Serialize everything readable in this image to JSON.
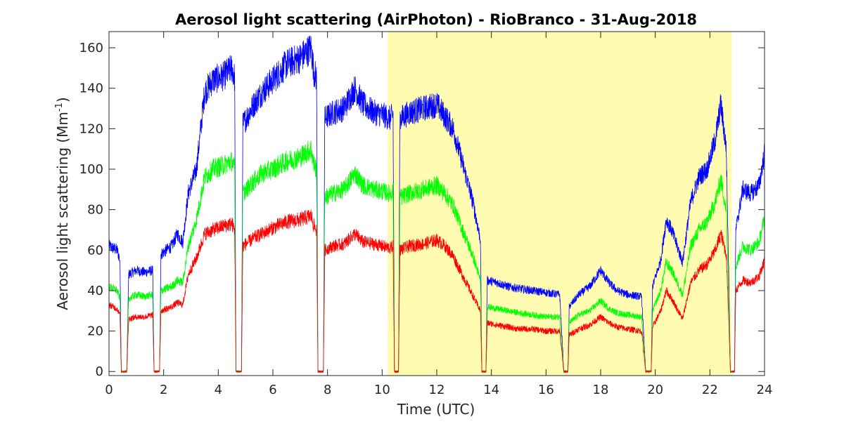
{
  "chart_data": {
    "type": "line",
    "title": "Aerosol light scattering (AirPhoton) - RioBranco - 31-Aug-2018",
    "xlabel": "Time (UTC)",
    "ylabel_main": "Aerosol light scattering (Mm",
    "ylabel_sup": "-1",
    "ylabel_close": ")",
    "xlim": [
      0,
      24
    ],
    "ylim": [
      -2,
      168
    ],
    "xticks": [
      0,
      2,
      4,
      6,
      8,
      10,
      12,
      14,
      16,
      18,
      20,
      22,
      24
    ],
    "yticks": [
      0,
      20,
      40,
      60,
      80,
      100,
      120,
      140,
      160
    ],
    "grid": false,
    "highlight": {
      "x_start": 10.2,
      "x_end": 22.8,
      "color": "#fffbb0"
    },
    "series": [
      {
        "color": "#0000ff",
        "points": [
          [
            0.0,
            62
          ],
          [
            0.3,
            60
          ],
          [
            0.4,
            55
          ],
          [
            0.45,
            0
          ],
          [
            0.65,
            0
          ],
          [
            0.72,
            48
          ],
          [
            1.0,
            50
          ],
          [
            1.3,
            49
          ],
          [
            1.6,
            50
          ],
          [
            1.65,
            0
          ],
          [
            1.85,
            0
          ],
          [
            1.9,
            58
          ],
          [
            2.3,
            62
          ],
          [
            2.5,
            68
          ],
          [
            2.7,
            64
          ],
          [
            2.9,
            88
          ],
          [
            3.2,
            100
          ],
          [
            3.5,
            138
          ],
          [
            3.8,
            144
          ],
          [
            4.2,
            146
          ],
          [
            4.5,
            150
          ],
          [
            4.6,
            145
          ],
          [
            4.65,
            0
          ],
          [
            4.85,
            0
          ],
          [
            4.9,
            122
          ],
          [
            5.3,
            132
          ],
          [
            5.6,
            138
          ],
          [
            6.0,
            144
          ],
          [
            6.5,
            152
          ],
          [
            7.0,
            155
          ],
          [
            7.4,
            160
          ],
          [
            7.5,
            148
          ],
          [
            7.6,
            145
          ],
          [
            7.65,
            0
          ],
          [
            7.85,
            0
          ],
          [
            7.9,
            125
          ],
          [
            8.2,
            128
          ],
          [
            8.6,
            130
          ],
          [
            9.0,
            140
          ],
          [
            9.3,
            132
          ],
          [
            9.7,
            128
          ],
          [
            10.0,
            127
          ],
          [
            10.3,
            125
          ],
          [
            10.4,
            127
          ],
          [
            10.45,
            0
          ],
          [
            10.6,
            0
          ],
          [
            10.65,
            125
          ],
          [
            11.0,
            128
          ],
          [
            11.5,
            130
          ],
          [
            12.0,
            132
          ],
          [
            12.3,
            126
          ],
          [
            12.6,
            120
          ],
          [
            13.0,
            100
          ],
          [
            13.3,
            85
          ],
          [
            13.6,
            65
          ],
          [
            13.65,
            0
          ],
          [
            13.8,
            0
          ],
          [
            13.85,
            45
          ],
          [
            14.2,
            44
          ],
          [
            14.6,
            42
          ],
          [
            15.0,
            41
          ],
          [
            15.5,
            40
          ],
          [
            16.0,
            39
          ],
          [
            16.5,
            38
          ],
          [
            16.65,
            0
          ],
          [
            16.8,
            0
          ],
          [
            16.85,
            32
          ],
          [
            17.2,
            38
          ],
          [
            17.6,
            42
          ],
          [
            18.0,
            50
          ],
          [
            18.3,
            44
          ],
          [
            18.6,
            40
          ],
          [
            19.0,
            38
          ],
          [
            19.5,
            37
          ],
          [
            19.65,
            0
          ],
          [
            19.85,
            0
          ],
          [
            19.9,
            42
          ],
          [
            20.2,
            55
          ],
          [
            20.4,
            75
          ],
          [
            20.6,
            70
          ],
          [
            20.8,
            62
          ],
          [
            21.0,
            54
          ],
          [
            21.3,
            84
          ],
          [
            21.6,
            96
          ],
          [
            21.9,
            100
          ],
          [
            22.2,
            115
          ],
          [
            22.4,
            132
          ],
          [
            22.6,
            110
          ],
          [
            22.7,
            40
          ],
          [
            22.75,
            0
          ],
          [
            22.9,
            0
          ],
          [
            22.95,
            70
          ],
          [
            23.2,
            90
          ],
          [
            23.5,
            88
          ],
          [
            23.8,
            92
          ],
          [
            24.0,
            108
          ]
        ]
      },
      {
        "color": "#00ff00",
        "points": [
          [
            0.0,
            42
          ],
          [
            0.3,
            40
          ],
          [
            0.4,
            36
          ],
          [
            0.45,
            0
          ],
          [
            0.65,
            0
          ],
          [
            0.72,
            36
          ],
          [
            1.0,
            38
          ],
          [
            1.3,
            37
          ],
          [
            1.6,
            38
          ],
          [
            1.65,
            0
          ],
          [
            1.85,
            0
          ],
          [
            1.9,
            40
          ],
          [
            2.3,
            42
          ],
          [
            2.5,
            45
          ],
          [
            2.7,
            44
          ],
          [
            2.9,
            62
          ],
          [
            3.2,
            75
          ],
          [
            3.5,
            96
          ],
          [
            3.8,
            100
          ],
          [
            4.2,
            102
          ],
          [
            4.5,
            104
          ],
          [
            4.6,
            100
          ],
          [
            4.65,
            0
          ],
          [
            4.85,
            0
          ],
          [
            4.9,
            88
          ],
          [
            5.3,
            94
          ],
          [
            5.6,
            98
          ],
          [
            6.0,
            100
          ],
          [
            6.5,
            104
          ],
          [
            7.0,
            106
          ],
          [
            7.4,
            110
          ],
          [
            7.5,
            102
          ],
          [
            7.6,
            100
          ],
          [
            7.65,
            0
          ],
          [
            7.85,
            0
          ],
          [
            7.9,
            86
          ],
          [
            8.2,
            88
          ],
          [
            8.6,
            90
          ],
          [
            9.0,
            98
          ],
          [
            9.3,
            92
          ],
          [
            9.7,
            90
          ],
          [
            10.0,
            89
          ],
          [
            10.3,
            88
          ],
          [
            10.4,
            89
          ],
          [
            10.45,
            0
          ],
          [
            10.6,
            0
          ],
          [
            10.65,
            86
          ],
          [
            11.0,
            88
          ],
          [
            11.5,
            90
          ],
          [
            12.0,
            92
          ],
          [
            12.3,
            88
          ],
          [
            12.6,
            82
          ],
          [
            13.0,
            68
          ],
          [
            13.3,
            58
          ],
          [
            13.6,
            45
          ],
          [
            13.65,
            0
          ],
          [
            13.8,
            0
          ],
          [
            13.85,
            32
          ],
          [
            14.2,
            31
          ],
          [
            14.6,
            30
          ],
          [
            15.0,
            29
          ],
          [
            15.5,
            28
          ],
          [
            16.0,
            27
          ],
          [
            16.5,
            27
          ],
          [
            16.65,
            0
          ],
          [
            16.8,
            0
          ],
          [
            16.85,
            24
          ],
          [
            17.2,
            28
          ],
          [
            17.6,
            30
          ],
          [
            18.0,
            35
          ],
          [
            18.3,
            31
          ],
          [
            18.6,
            29
          ],
          [
            19.0,
            28
          ],
          [
            19.5,
            27
          ],
          [
            19.65,
            0
          ],
          [
            19.85,
            0
          ],
          [
            19.9,
            30
          ],
          [
            20.2,
            40
          ],
          [
            20.4,
            54
          ],
          [
            20.6,
            50
          ],
          [
            20.8,
            44
          ],
          [
            21.0,
            38
          ],
          [
            21.3,
            62
          ],
          [
            21.6,
            70
          ],
          [
            21.9,
            74
          ],
          [
            22.2,
            84
          ],
          [
            22.4,
            95
          ],
          [
            22.6,
            80
          ],
          [
            22.7,
            30
          ],
          [
            22.75,
            0
          ],
          [
            22.9,
            0
          ],
          [
            22.95,
            52
          ],
          [
            23.2,
            62
          ],
          [
            23.5,
            60
          ],
          [
            23.8,
            64
          ],
          [
            24.0,
            76
          ]
        ]
      },
      {
        "color": "#ff0000",
        "points": [
          [
            0.0,
            33
          ],
          [
            0.3,
            31
          ],
          [
            0.4,
            28
          ],
          [
            0.45,
            0
          ],
          [
            0.65,
            0
          ],
          [
            0.72,
            26
          ],
          [
            1.0,
            27
          ],
          [
            1.3,
            27
          ],
          [
            1.6,
            28
          ],
          [
            1.65,
            0
          ],
          [
            1.85,
            0
          ],
          [
            1.9,
            30
          ],
          [
            2.3,
            32
          ],
          [
            2.5,
            34
          ],
          [
            2.7,
            33
          ],
          [
            2.9,
            48
          ],
          [
            3.2,
            56
          ],
          [
            3.5,
            68
          ],
          [
            3.8,
            70
          ],
          [
            4.2,
            72
          ],
          [
            4.5,
            73
          ],
          [
            4.6,
            70
          ],
          [
            4.65,
            0
          ],
          [
            4.85,
            0
          ],
          [
            4.9,
            62
          ],
          [
            5.3,
            66
          ],
          [
            5.6,
            68
          ],
          [
            6.0,
            71
          ],
          [
            6.5,
            74
          ],
          [
            7.0,
            75
          ],
          [
            7.4,
            77
          ],
          [
            7.5,
            72
          ],
          [
            7.6,
            70
          ],
          [
            7.65,
            0
          ],
          [
            7.85,
            0
          ],
          [
            7.9,
            60
          ],
          [
            8.2,
            62
          ],
          [
            8.6,
            63
          ],
          [
            9.0,
            68
          ],
          [
            9.3,
            64
          ],
          [
            9.7,
            63
          ],
          [
            10.0,
            62
          ],
          [
            10.3,
            61
          ],
          [
            10.4,
            62
          ],
          [
            10.45,
            0
          ],
          [
            10.6,
            0
          ],
          [
            10.65,
            60
          ],
          [
            11.0,
            62
          ],
          [
            11.5,
            63
          ],
          [
            12.0,
            65
          ],
          [
            12.3,
            62
          ],
          [
            12.6,
            57
          ],
          [
            13.0,
            46
          ],
          [
            13.3,
            38
          ],
          [
            13.6,
            30
          ],
          [
            13.65,
            0
          ],
          [
            13.8,
            0
          ],
          [
            13.85,
            24
          ],
          [
            14.2,
            23
          ],
          [
            14.6,
            22
          ],
          [
            15.0,
            21
          ],
          [
            15.5,
            21
          ],
          [
            16.0,
            20
          ],
          [
            16.5,
            20
          ],
          [
            16.65,
            0
          ],
          [
            16.8,
            0
          ],
          [
            16.85,
            18
          ],
          [
            17.2,
            21
          ],
          [
            17.6,
            23
          ],
          [
            18.0,
            27
          ],
          [
            18.3,
            24
          ],
          [
            18.6,
            22
          ],
          [
            19.0,
            21
          ],
          [
            19.5,
            20
          ],
          [
            19.65,
            0
          ],
          [
            19.85,
            0
          ],
          [
            19.9,
            22
          ],
          [
            20.2,
            30
          ],
          [
            20.4,
            40
          ],
          [
            20.6,
            36
          ],
          [
            20.8,
            31
          ],
          [
            21.0,
            26
          ],
          [
            21.3,
            44
          ],
          [
            21.6,
            50
          ],
          [
            21.9,
            53
          ],
          [
            22.2,
            60
          ],
          [
            22.4,
            68
          ],
          [
            22.6,
            58
          ],
          [
            22.7,
            22
          ],
          [
            22.75,
            0
          ],
          [
            22.9,
            0
          ],
          [
            22.95,
            40
          ],
          [
            23.2,
            45
          ],
          [
            23.5,
            44
          ],
          [
            23.8,
            47
          ],
          [
            24.0,
            55
          ]
        ]
      }
    ]
  }
}
